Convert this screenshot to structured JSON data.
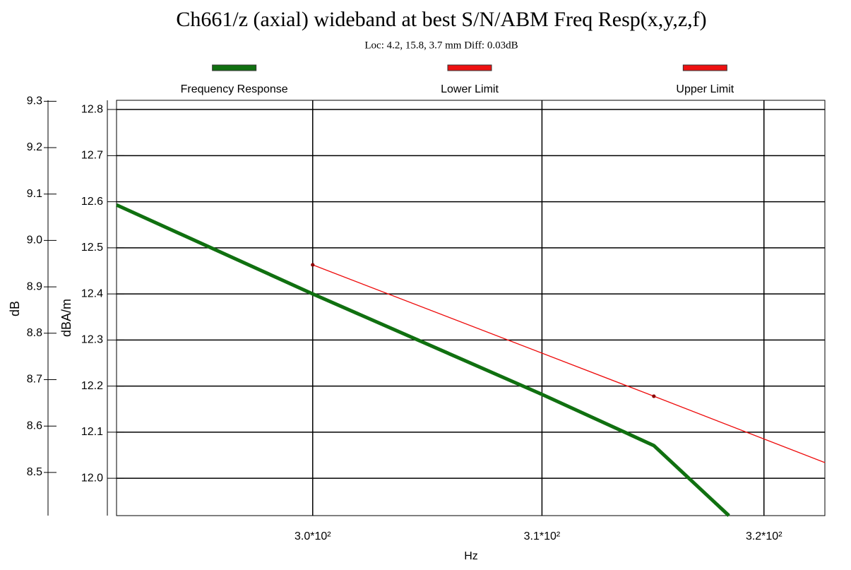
{
  "chart_data": {
    "type": "line",
    "title": "Ch661/z (axial) wideband at best S/N/ABM Freq Resp(x,y,z,f)",
    "subtitle": "Loc: 4.2, 15.8, 3.7 mm Diff: 0.03dB",
    "xlabel": "Hz",
    "ylabel": "dBA/m",
    "y2label": "dB",
    "xscale": "log",
    "grid": true,
    "legend": "top",
    "xlim": [
      291.7,
      322.8
    ],
    "xticks": [
      {
        "value": 300,
        "label": "3.0*10²"
      },
      {
        "value": 310,
        "label": "3.1*10²"
      },
      {
        "value": 320,
        "label": "3.2*10²"
      }
    ],
    "ylim": [
      11.919,
      12.82
    ],
    "yticks": [
      {
        "value": 12,
        "label": "12.0"
      },
      12.1,
      12.2,
      12.3,
      12.4,
      12.5,
      12.6,
      12.7,
      12.8
    ],
    "y2lim": [
      8.407,
      9.302
    ],
    "y2ticks": [
      8.5,
      8.6,
      8.7,
      8.8,
      8.9,
      {
        "value": 9,
        "label": "9.0"
      },
      9.1,
      9.2,
      9.3
    ],
    "series": [
      {
        "name": "Frequency Response",
        "color": "#107010",
        "width": 5,
        "x": [
          291.7,
          300,
          310,
          315,
          318.4
        ],
        "values": [
          12.593,
          12.4,
          12.182,
          12.071,
          11.919
        ]
      },
      {
        "name": "Lower Limit",
        "color": "#ee1111",
        "width": 1.2,
        "x": [
          300,
          315,
          322.8
        ],
        "values": [
          12.463,
          12.178,
          12.034
        ]
      },
      {
        "name": "Upper Limit",
        "color": "#ee1111",
        "width": 1.2,
        "x": [
          300,
          315,
          322.8
        ],
        "values": [
          12.463,
          12.178,
          12.034
        ]
      }
    ]
  }
}
